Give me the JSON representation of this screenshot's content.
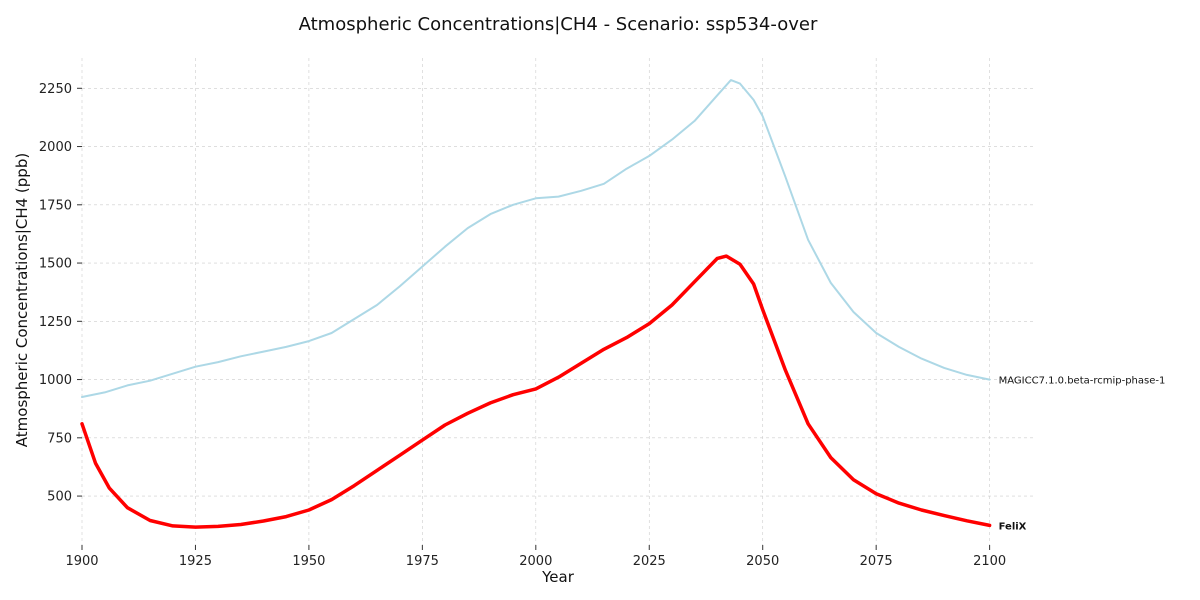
{
  "chart_data": {
    "type": "line",
    "title": "Atmospheric Concentrations|CH4 - Scenario: ssp534-over",
    "xlabel": "Year",
    "ylabel": "Atmospheric Concentrations|CH4 (ppb)",
    "xlim": [
      1900,
      2110
    ],
    "ylim": [
      290,
      2380
    ],
    "xticks": [
      1900,
      1925,
      1950,
      1975,
      2000,
      2025,
      2050,
      2075,
      2100
    ],
    "yticks": [
      500,
      750,
      1000,
      1250,
      1500,
      1750,
      2000,
      2250
    ],
    "grid": true,
    "legend": "end-of-line labels",
    "series": [
      {
        "name": "MAGICC7.1.0.beta-rcmip-phase-1",
        "color": "#add8e6",
        "label_bold": false,
        "x": [
          1900,
          1905,
          1910,
          1915,
          1920,
          1925,
          1930,
          1935,
          1940,
          1945,
          1950,
          1955,
          1960,
          1965,
          1970,
          1975,
          1980,
          1985,
          1990,
          1995,
          2000,
          2005,
          2010,
          2015,
          2020,
          2025,
          2030,
          2035,
          2040,
          2043,
          2045,
          2048,
          2050,
          2055,
          2060,
          2065,
          2070,
          2075,
          2080,
          2085,
          2090,
          2095,
          2100
        ],
        "y": [
          925,
          945,
          975,
          995,
          1025,
          1055,
          1075,
          1100,
          1120,
          1140,
          1165,
          1200,
          1260,
          1320,
          1400,
          1485,
          1570,
          1650,
          1710,
          1750,
          1778,
          1785,
          1810,
          1840,
          1905,
          1960,
          2030,
          2110,
          2220,
          2285,
          2270,
          2200,
          2130,
          1870,
          1600,
          1415,
          1290,
          1200,
          1140,
          1090,
          1050,
          1020,
          1000
        ]
      },
      {
        "name": "FeliX",
        "color": "#ff0000",
        "label_bold": true,
        "x": [
          1900,
          1903,
          1906,
          1910,
          1915,
          1920,
          1925,
          1930,
          1935,
          1940,
          1945,
          1950,
          1955,
          1960,
          1965,
          1970,
          1975,
          1980,
          1985,
          1990,
          1995,
          2000,
          2005,
          2010,
          2015,
          2020,
          2025,
          2030,
          2035,
          2040,
          2042,
          2045,
          2048,
          2050,
          2055,
          2060,
          2065,
          2070,
          2075,
          2080,
          2085,
          2090,
          2095,
          2100
        ],
        "y": [
          810,
          640,
          535,
          450,
          395,
          372,
          367,
          370,
          378,
          393,
          412,
          440,
          485,
          545,
          610,
          675,
          740,
          805,
          855,
          900,
          935,
          960,
          1010,
          1070,
          1130,
          1180,
          1240,
          1320,
          1420,
          1520,
          1530,
          1495,
          1410,
          1300,
          1040,
          810,
          665,
          570,
          510,
          470,
          440,
          416,
          394,
          374
        ]
      }
    ]
  }
}
